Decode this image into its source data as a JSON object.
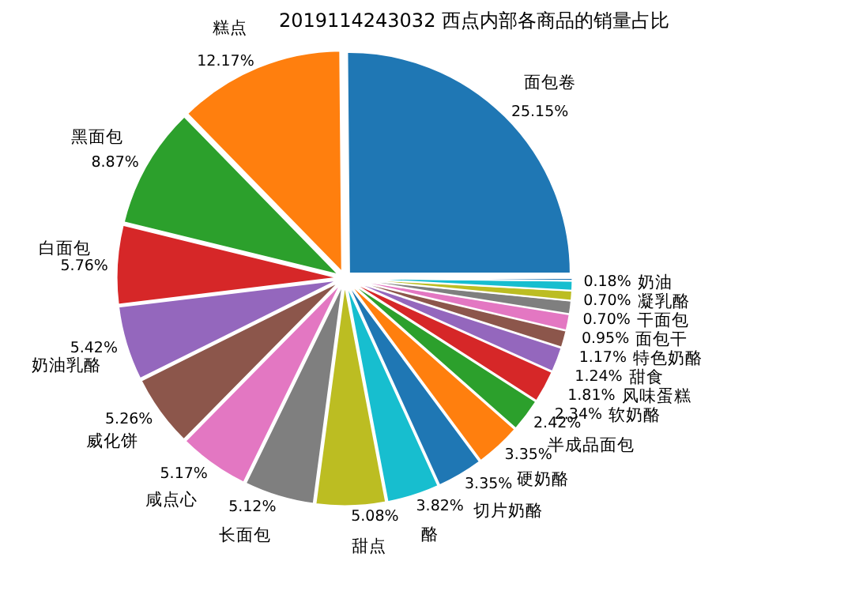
{
  "chart_data": {
    "type": "pie",
    "title": "2019114243032 西点内部各商品的销量占比",
    "categories": [
      "面包卷",
      "糕点",
      "黑面包",
      "白面包",
      "奶油乳酪",
      "威化饼",
      "咸点心",
      "长面包",
      "甜点",
      "酪",
      "切片奶酪",
      "硬奶酪",
      "半成品面包",
      "软奶酪",
      "风味蛋糕",
      "甜食",
      "特色奶酪",
      "面包干",
      "干面包",
      "凝乳酪",
      "奶油"
    ],
    "values": [
      25.15,
      12.17,
      8.87,
      5.76,
      5.42,
      5.26,
      5.17,
      5.12,
      5.08,
      3.82,
      3.35,
      3.35,
      2.42,
      2.34,
      1.81,
      1.24,
      1.17,
      0.95,
      0.7,
      0.7,
      0.18
    ],
    "value_labels": [
      "25.15%",
      "12.17%",
      "8.87%",
      "5.76%",
      "5.42%",
      "5.26%",
      "5.17%",
      "5.12%",
      "5.08%",
      "3.82%",
      "3.35%",
      "3.35%",
      "2.42%",
      "2.34%",
      "1.81%",
      "1.24%",
      "1.17%",
      "0.95%",
      "0.70%",
      "0.70%",
      "0.18%"
    ],
    "colors": [
      "#1f77b4",
      "#ff7f0e",
      "#2ca02c",
      "#d62728",
      "#9467bd",
      "#8c564b",
      "#e377c2",
      "#7f7f7f",
      "#bcbd22",
      "#17becf",
      "#1f77b4",
      "#ff7f0e",
      "#2ca02c",
      "#d62728",
      "#9467bd",
      "#8c564b",
      "#e377c2",
      "#7f7f7f",
      "#bcbd22",
      "#17becf",
      "#1f77b4"
    ]
  }
}
